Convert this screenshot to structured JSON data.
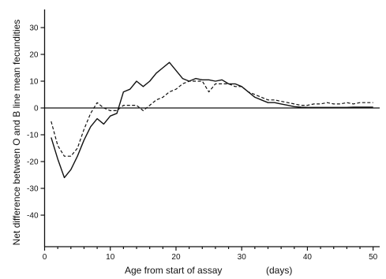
{
  "chart_data": {
    "type": "line",
    "title": "",
    "xlabel": "Age from start of assay",
    "xlabel_unit": "(days)",
    "ylabel": "Net difference between O and B line mean fecundities",
    "xlim": [
      0,
      51
    ],
    "ylim": [
      -50,
      38
    ],
    "x_ticks": [
      0,
      10,
      20,
      30,
      40,
      50
    ],
    "y_ticks": [
      30,
      20,
      10,
      0,
      -10,
      -20,
      -30,
      -40
    ],
    "y_tick_labels": [
      "30",
      "20",
      "10",
      "0",
      "-10",
      "-20",
      "-30",
      "-40"
    ],
    "zero_line": true,
    "grid": false,
    "legend": "none",
    "series": [
      {
        "style": "solid",
        "x": [
          1,
          2,
          3,
          4,
          5,
          6,
          7,
          8,
          9,
          10,
          11,
          12,
          13,
          14,
          15,
          16,
          17,
          18,
          19,
          20,
          21,
          22,
          23,
          24,
          25,
          26,
          27,
          28,
          29,
          30,
          31,
          32,
          33,
          34,
          35,
          36,
          37,
          38,
          39,
          40,
          41,
          42,
          43,
          44,
          45,
          46,
          47,
          48,
          49,
          50
        ],
        "values": [
          -11,
          -19,
          -26,
          -23,
          -18,
          -12,
          -7,
          -4,
          -6,
          -3,
          -2,
          6,
          7,
          10,
          8,
          10,
          13,
          15,
          17,
          14,
          11,
          10,
          11,
          10.5,
          10.5,
          10,
          10.5,
          9,
          9,
          8,
          6,
          4,
          3,
          2,
          2,
          1.5,
          1,
          0.5,
          0.3,
          0.2,
          0.2,
          0.2,
          0.2,
          0.2,
          0.2,
          0.2,
          0.3,
          0.3,
          0.3,
          0.3
        ]
      },
      {
        "style": "dashed",
        "x": [
          1,
          2,
          3,
          4,
          5,
          6,
          7,
          8,
          9,
          10,
          11,
          12,
          13,
          14,
          15,
          16,
          17,
          18,
          19,
          20,
          21,
          22,
          23,
          24,
          25,
          26,
          27,
          28,
          29,
          30,
          31,
          32,
          33,
          34,
          35,
          36,
          37,
          38,
          39,
          40,
          41,
          42,
          43,
          44,
          45,
          46,
          47,
          48,
          49,
          50
        ],
        "values": [
          -5,
          -14,
          -18,
          -18,
          -15,
          -8,
          -2,
          2,
          0,
          -1,
          -1,
          1,
          1,
          1,
          -1,
          1,
          3,
          4,
          6,
          7,
          9,
          10,
          10,
          10,
          6,
          9,
          9,
          9,
          8,
          8,
          6,
          5,
          4,
          3,
          3,
          2.5,
          2,
          1.5,
          1,
          1,
          1.5,
          1.5,
          2,
          1.5,
          1.5,
          2,
          1.5,
          2,
          2,
          2
        ]
      }
    ]
  }
}
